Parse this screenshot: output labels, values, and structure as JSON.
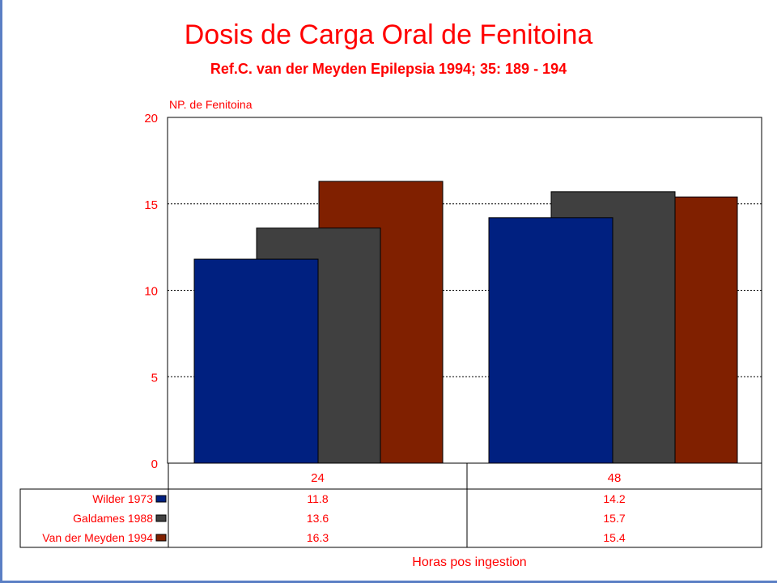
{
  "chart_data": {
    "type": "bar",
    "title": "Dosis de Carga Oral de Fenitoina",
    "subtitle": "Ref.C. van der Meyden Epilepsia 1994; 35: 189 - 194",
    "ylabel": "NP. de Fenitoina",
    "xlabel": "Horas pos ingestion",
    "categories": [
      "24",
      "48"
    ],
    "ylim": [
      0,
      20
    ],
    "yticks": [
      "0",
      "5",
      "10",
      "15",
      "20"
    ],
    "grid": "horizontal dashed",
    "series": [
      {
        "name": "Wilder 1973",
        "values": [
          11.8,
          14.2
        ],
        "color": "#002080"
      },
      {
        "name": "Galdames 1988",
        "values": [
          13.6,
          15.7
        ],
        "color": "#404040"
      },
      {
        "name": "Van der Meyden 1994",
        "values": [
          16.3,
          15.4
        ],
        "color": "#802000"
      }
    ],
    "data_table": {
      "rows": [
        {
          "label": "Wilder 1973",
          "values": [
            "11.8",
            "14.2"
          ]
        },
        {
          "label": "Galdames 1988",
          "values": [
            "13.6",
            "15.7"
          ]
        },
        {
          "label": "Van der Meyden 1994",
          "values": [
            "16.3",
            "15.4"
          ]
        }
      ]
    },
    "colors": {
      "text": "#ff0000",
      "frame": "#5b7fc4"
    }
  }
}
